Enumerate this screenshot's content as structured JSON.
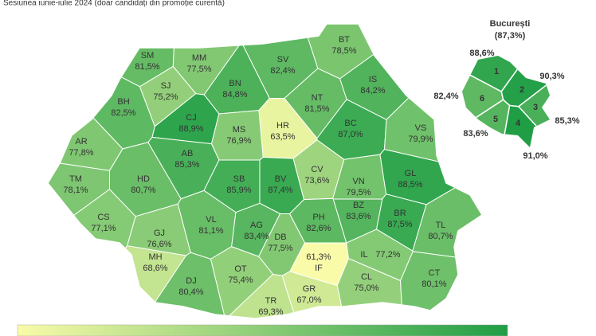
{
  "subtitle": "Sesiunea iunie-iulie 2024 (doar candidați din promoție curentă)",
  "color_scale": {
    "low": "#f9fba8",
    "high": "#1f9e46"
  },
  "counties": [
    {
      "code": "SM",
      "value": 81.5,
      "label": "81,5%"
    },
    {
      "code": "MM",
      "value": 77.5,
      "label": "77,5%"
    },
    {
      "code": "BT",
      "value": 78.5,
      "label": "78,5%"
    },
    {
      "code": "SV",
      "value": 82.4,
      "label": "82,4%"
    },
    {
      "code": "SJ",
      "value": 75.2,
      "label": "75,2%"
    },
    {
      "code": "BN",
      "value": 84.8,
      "label": "84,8%"
    },
    {
      "code": "IS",
      "value": 84.2,
      "label": "84,2%"
    },
    {
      "code": "NT",
      "value": 81.5,
      "label": "81,5%"
    },
    {
      "code": "BH",
      "value": 82.5,
      "label": "82,5%"
    },
    {
      "code": "CJ",
      "value": 88.9,
      "label": "88,9%"
    },
    {
      "code": "HR",
      "value": 63.5,
      "label": "63,5%"
    },
    {
      "code": "MS",
      "value": 76.9,
      "label": "76,9%"
    },
    {
      "code": "BC",
      "value": 87.0,
      "label": "87,0%"
    },
    {
      "code": "VS",
      "value": 79.9,
      "label": "79,9%"
    },
    {
      "code": "AR",
      "value": 77.8,
      "label": "77,8%"
    },
    {
      "code": "AB",
      "value": 85.3,
      "label": "85,3%"
    },
    {
      "code": "CV",
      "value": 73.6,
      "label": "73,6%"
    },
    {
      "code": "SB",
      "value": 85.9,
      "label": "85,9%"
    },
    {
      "code": "BV",
      "value": 87.4,
      "label": "87,4%"
    },
    {
      "code": "VN",
      "value": 79.5,
      "label": "79,5%"
    },
    {
      "code": "GL",
      "value": 88.5,
      "label": "88,5%"
    },
    {
      "code": "TM",
      "value": 78.1,
      "label": "78,1%"
    },
    {
      "code": "HD",
      "value": 80.7,
      "label": "80,7%"
    },
    {
      "code": "CS",
      "value": 77.1,
      "label": "77,1%"
    },
    {
      "code": "GJ",
      "value": 76.6,
      "label": "76,6%"
    },
    {
      "code": "VL",
      "value": 81.1,
      "label": "81,1%"
    },
    {
      "code": "AG",
      "value": 83.4,
      "label": "83,4%"
    },
    {
      "code": "PH",
      "value": 82.6,
      "label": "82,6%"
    },
    {
      "code": "BZ",
      "value": 83.6,
      "label": "83,6%"
    },
    {
      "code": "BR",
      "value": 87.5,
      "label": "87,5%"
    },
    {
      "code": "TL",
      "value": 80.7,
      "label": "80,7%"
    },
    {
      "code": "DB",
      "value": 77.5,
      "label": "77,5%"
    },
    {
      "code": "MH",
      "value": 68.6,
      "label": "68,6%"
    },
    {
      "code": "OT",
      "value": 75.4,
      "label": "75,4%"
    },
    {
      "code": "IF",
      "value": 61.3,
      "label": "61,3%"
    },
    {
      "code": "IL",
      "value": 77.2,
      "label": "77,2%"
    },
    {
      "code": "DJ",
      "value": 80.4,
      "label": "80,4%"
    },
    {
      "code": "CL",
      "value": 75.0,
      "label": "75,0%"
    },
    {
      "code": "CT",
      "value": 80.1,
      "label": "80,1%"
    },
    {
      "code": "TR",
      "value": 69.3,
      "label": "69,3%"
    },
    {
      "code": "GR",
      "value": 67.0,
      "label": "67,0%"
    }
  ],
  "bucharest": {
    "title": "București",
    "total": "(87,3%)",
    "sectors": [
      {
        "number": "1",
        "value": 88.6,
        "label": "88,6%"
      },
      {
        "number": "2",
        "value": 90.3,
        "label": "90,3%"
      },
      {
        "number": "3",
        "value": 85.3,
        "label": "85,3%"
      },
      {
        "number": "4",
        "value": 91.0,
        "label": "91,0%"
      },
      {
        "number": "5",
        "value": 83.6,
        "label": "83,6%"
      },
      {
        "number": "6",
        "value": 82.4,
        "label": "82,4%"
      }
    ]
  }
}
